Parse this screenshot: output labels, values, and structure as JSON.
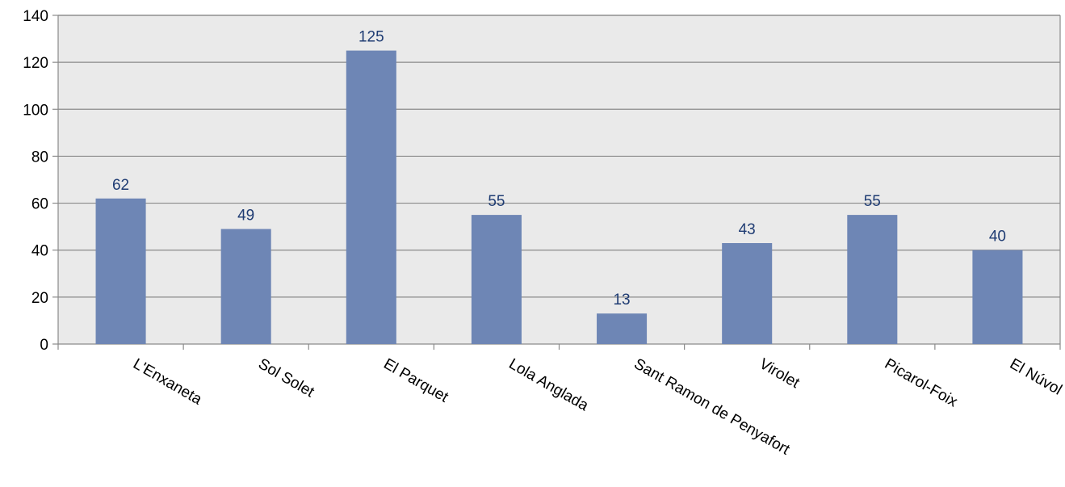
{
  "chart_data": {
    "type": "bar",
    "categories": [
      "L'Enxaneta",
      "Sol Solet",
      "El Parquet",
      "Lola Anglada",
      "Sant Ramon de Penyafort",
      "Virolet",
      "Picarol-Foix",
      "El Núvol"
    ],
    "values": [
      62,
      49,
      125,
      55,
      13,
      43,
      55,
      40
    ],
    "ylim": [
      0,
      140
    ],
    "yticks": [
      0,
      20,
      40,
      60,
      80,
      100,
      120,
      140
    ],
    "grid": true,
    "legend": "none",
    "data_labels": true,
    "colors": {
      "bar": "#6e86b5",
      "plot_background": "#eaeaea",
      "gridline": "#8a8a8a",
      "data_label": "#1f3c73",
      "axis": "#8a8a8a"
    }
  }
}
